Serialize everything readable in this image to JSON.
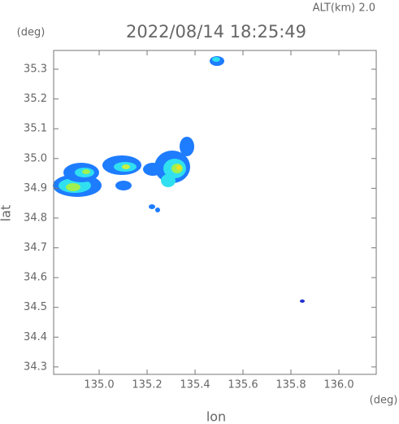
{
  "chart_data": {
    "type": "map",
    "header": "ALT(km) 2.0",
    "title": "2022/08/14 18:25:49",
    "y_unit": "(deg)",
    "x_unit": "(deg)",
    "xlabel": "lon",
    "ylabel": "lat",
    "xlim": [
      134.81,
      136.156
    ],
    "ylim": [
      34.275,
      35.363
    ],
    "xticks": [
      {
        "value": 135,
        "label": "135.0"
      },
      135.2,
      135.4,
      135.6,
      135.8,
      {
        "value": 136,
        "label": "136.0"
      }
    ],
    "yticks": [
      34.3,
      34.4,
      34.5,
      34.6,
      34.7,
      34.8,
      34.9,
      {
        "value": 35,
        "label": "35.0"
      },
      35.1,
      35.2,
      35.3
    ]
  }
}
